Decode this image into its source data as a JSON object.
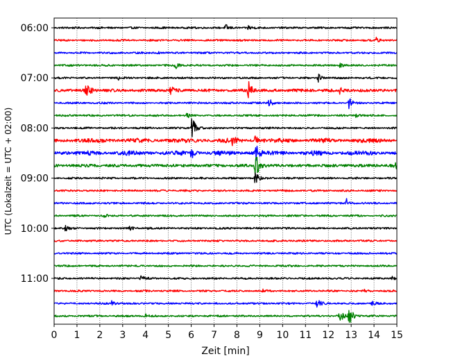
{
  "chart_data": {
    "type": "line",
    "title": "",
    "xlabel": "Zeit  [min]",
    "ylabel": "UTC (Lokalzeit = UTC + 02:00)",
    "xlim": [
      0,
      15
    ],
    "x_ticks": [
      0,
      1,
      2,
      3,
      4,
      5,
      6,
      7,
      8,
      9,
      10,
      11,
      12,
      13,
      14,
      15
    ],
    "y_hour_labels": [
      {
        "label": "06:00",
        "trace_index": 0
      },
      {
        "label": "07:00",
        "trace_index": 4
      },
      {
        "label": "08:00",
        "trace_index": 8
      },
      {
        "label": "09:00",
        "trace_index": 12
      },
      {
        "label": "10:00",
        "trace_index": 16
      },
      {
        "label": "11:00",
        "trace_index": 20
      }
    ],
    "grid": "vertical dotted",
    "color_cycle": [
      "#000000",
      "#ff0000",
      "#0000ff",
      "#008000"
    ],
    "traces": [
      {
        "start": "06:00",
        "events": [
          {
            "t": 7.5,
            "amp": 0.25
          },
          {
            "t": 8.5,
            "amp": 0.2
          }
        ]
      },
      {
        "start": "06:15",
        "events": [
          {
            "t": 14.1,
            "amp": 0.2
          }
        ]
      },
      {
        "start": "06:30",
        "events": [
          {
            "t": 4.5,
            "amp": 0.12
          }
        ]
      },
      {
        "start": "06:45",
        "events": [
          {
            "t": 5.3,
            "amp": 0.3
          },
          {
            "t": 12.5,
            "amp": 0.15
          }
        ]
      },
      {
        "start": "07:00",
        "events": [
          {
            "t": 11.5,
            "amp": 0.5
          },
          {
            "t": 2.8,
            "amp": 0.15
          }
        ]
      },
      {
        "start": "07:15",
        "events": [
          {
            "t": 1.4,
            "amp": 0.9
          },
          {
            "t": 5.1,
            "amp": 0.35
          },
          {
            "t": 8.5,
            "amp": 0.8
          },
          {
            "t": 12.5,
            "amp": 0.2
          }
        ]
      },
      {
        "start": "07:30",
        "events": [
          {
            "t": 9.4,
            "amp": 0.4
          },
          {
            "t": 12.9,
            "amp": 0.5
          }
        ]
      },
      {
        "start": "07:45",
        "events": [
          {
            "t": 5.8,
            "amp": 0.25
          },
          {
            "t": 13.2,
            "amp": 0.15
          }
        ]
      },
      {
        "start": "08:00",
        "events": [
          {
            "t": 6.0,
            "amp": 1.4
          }
        ]
      },
      {
        "start": "08:15",
        "events": [
          {
            "t": 8.8,
            "amp": 0.35
          },
          {
            "t": 7.8,
            "amp": 0.25
          }
        ]
      },
      {
        "start": "08:30",
        "events": [
          {
            "t": 6.0,
            "amp": 0.45
          },
          {
            "t": 8.8,
            "amp": 0.9
          }
        ]
      },
      {
        "start": "08:45",
        "events": [
          {
            "t": 8.8,
            "amp": 1.3
          },
          {
            "t": 14.9,
            "amp": 0.3
          }
        ]
      },
      {
        "start": "09:00",
        "events": [
          {
            "t": 8.8,
            "amp": 0.5
          }
        ]
      },
      {
        "start": "09:15",
        "events": []
      },
      {
        "start": "09:30",
        "events": [
          {
            "t": 12.8,
            "amp": 0.35
          }
        ]
      },
      {
        "start": "09:45",
        "events": [
          {
            "t": 2.2,
            "amp": 0.12
          }
        ]
      },
      {
        "start": "10:00",
        "events": [
          {
            "t": 0.5,
            "amp": 0.25
          },
          {
            "t": 3.3,
            "amp": 0.15
          },
          {
            "t": 4.0,
            "amp": 0.15
          }
        ]
      },
      {
        "start": "10:15",
        "events": []
      },
      {
        "start": "10:30",
        "events": []
      },
      {
        "start": "10:45",
        "events": []
      },
      {
        "start": "11:00",
        "events": [
          {
            "t": 3.8,
            "amp": 0.25
          },
          {
            "t": 14.8,
            "amp": 0.15
          }
        ]
      },
      {
        "start": "11:15",
        "events": [
          {
            "t": 9.1,
            "amp": 0.12
          },
          {
            "t": 13.5,
            "amp": 0.15
          }
        ]
      },
      {
        "start": "11:30",
        "events": [
          {
            "t": 2.5,
            "amp": 0.25
          },
          {
            "t": 11.5,
            "amp": 0.45
          },
          {
            "t": 13.9,
            "amp": 0.2
          }
        ]
      },
      {
        "start": "11:45",
        "events": [
          {
            "t": 12.5,
            "amp": 0.55
          },
          {
            "t": 12.9,
            "amp": 1.0
          },
          {
            "t": 4.0,
            "amp": 0.15
          }
        ]
      }
    ]
  }
}
